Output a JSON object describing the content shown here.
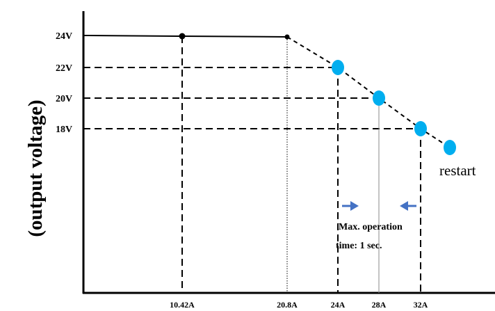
{
  "chart_data": {
    "type": "line",
    "title": "",
    "ylabel": "(output voltage)",
    "xlabel": "",
    "y_ticks": [
      {
        "label": "24V",
        "value": 24
      },
      {
        "label": "22V",
        "value": 22
      },
      {
        "label": "20V",
        "value": 20
      },
      {
        "label": "18V",
        "value": 18
      }
    ],
    "x_ticks": [
      {
        "label": "10.42A",
        "value": 10.42
      },
      {
        "label": "20.8A",
        "value": 20.8
      },
      {
        "label": "24A",
        "value": 24
      },
      {
        "label": "28A",
        "value": 28
      },
      {
        "label": "32A",
        "value": 32
      }
    ],
    "series": [
      {
        "style": "solid",
        "points": [
          {
            "x": 0,
            "y": 24
          },
          {
            "x": 10.42,
            "y": 23.9
          },
          {
            "x": 20.8,
            "y": 23.85
          }
        ]
      },
      {
        "style": "dashed",
        "points": [
          {
            "x": 20.8,
            "y": 23.85
          },
          {
            "x": 24,
            "y": 22
          },
          {
            "x": 28,
            "y": 20
          },
          {
            "x": 32,
            "y": 18
          },
          {
            "x": 34.8,
            "y": 16.8
          }
        ]
      }
    ],
    "markers": [
      {
        "x": 24,
        "y": 22,
        "color": "#00aeef"
      },
      {
        "x": 28,
        "y": 20,
        "color": "#00aeef"
      },
      {
        "x": 32,
        "y": 18,
        "color": "#00aeef"
      },
      {
        "x": 34.8,
        "y": 16.8,
        "color": "#00aeef"
      }
    ],
    "restart_label": "restart",
    "annotation": {
      "lines": [
        "Max. operation",
        "time: 1 sec."
      ],
      "from_x": 24,
      "to_x": 32,
      "arrow_color": "#4472c4"
    },
    "colors": {
      "marker": "#00aeef",
      "arrow": "#4472c4",
      "line": "#000000"
    }
  }
}
